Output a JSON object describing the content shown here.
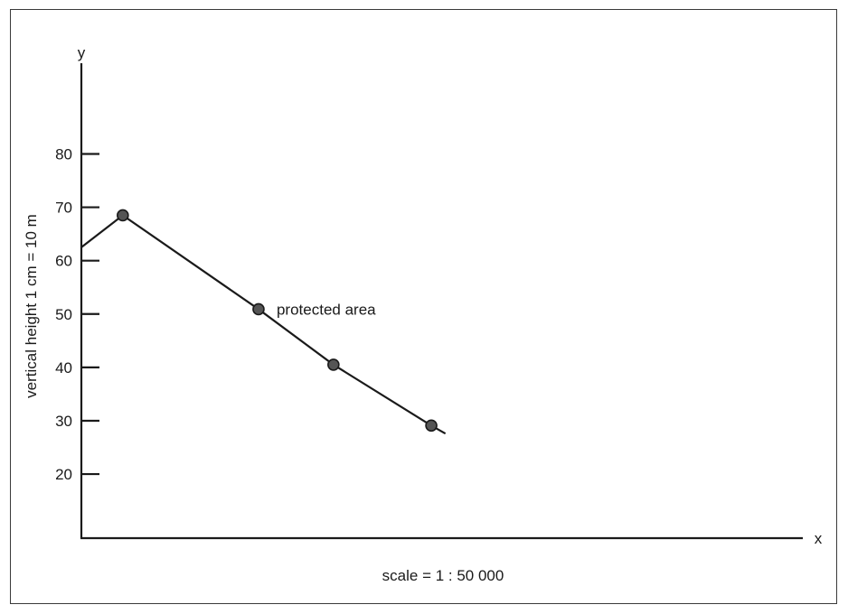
{
  "chart_data": {
    "type": "line",
    "x_axis_name": "x",
    "y_axis_name": "y",
    "ylabel": "vertical height 1 cm = 10 m",
    "caption": "scale = 1 : 50 000",
    "ylim": [
      8,
      97
    ],
    "yticks": [
      20,
      30,
      40,
      50,
      60,
      70,
      80
    ],
    "series": [
      {
        "points": [
          {
            "x": 0.0,
            "y": 62.5
          },
          {
            "x": 4.7,
            "y": 68.5
          },
          {
            "x": 20.1,
            "y": 50.9
          },
          {
            "x": 28.6,
            "y": 40.5
          },
          {
            "x": 39.7,
            "y": 29.1
          },
          {
            "x": 41.3,
            "y": 27.6
          }
        ],
        "markers": [
          1,
          2,
          3,
          4
        ]
      }
    ],
    "annotations": [
      {
        "text": "protected area",
        "point_index": 2
      }
    ],
    "grid": false,
    "legend": "none"
  }
}
